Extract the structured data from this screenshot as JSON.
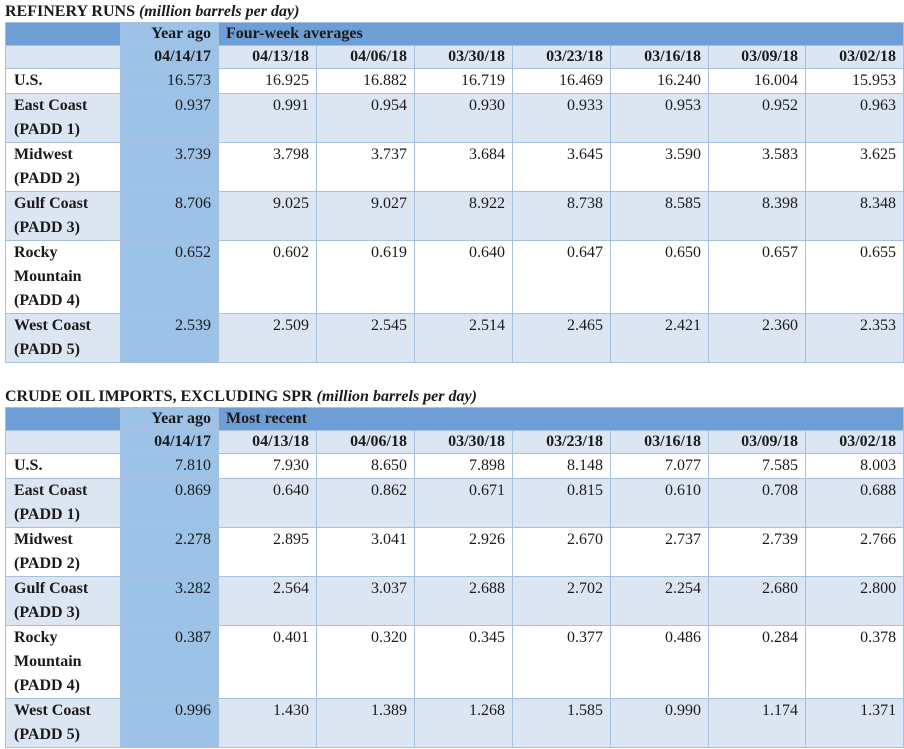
{
  "tables": [
    {
      "title": "REFINERY RUNS",
      "title_note": "(million barrels per day)",
      "group_headers": [
        "Year ago",
        "Four-week averages"
      ],
      "dates": [
        "04/14/17",
        "04/13/18",
        "04/06/18",
        "03/30/18",
        "03/23/18",
        "03/16/18",
        "03/09/18",
        "03/02/18"
      ],
      "rows": [
        {
          "region": [
            "U.S."
          ],
          "values": [
            "16.573",
            "16.925",
            "16.882",
            "16.719",
            "16.469",
            "16.240",
            "16.004",
            "15.953"
          ]
        },
        {
          "region": [
            "East Coast",
            "(PADD 1)"
          ],
          "values": [
            "0.937",
            "0.991",
            "0.954",
            "0.930",
            "0.933",
            "0.953",
            "0.952",
            "0.963"
          ]
        },
        {
          "region": [
            "Midwest",
            "(PADD 2)"
          ],
          "values": [
            "3.739",
            "3.798",
            "3.737",
            "3.684",
            "3.645",
            "3.590",
            "3.583",
            "3.625"
          ]
        },
        {
          "region": [
            "Gulf Coast",
            "(PADD 3)"
          ],
          "values": [
            "8.706",
            "9.025",
            "9.027",
            "8.922",
            "8.738",
            "8.585",
            "8.398",
            "8.348"
          ]
        },
        {
          "region": [
            "Rocky",
            "Mountain",
            "(PADD 4)"
          ],
          "values": [
            "0.652",
            "0.602",
            "0.619",
            "0.640",
            "0.647",
            "0.650",
            "0.657",
            "0.655"
          ]
        },
        {
          "region": [
            "West Coast",
            "(PADD 5)"
          ],
          "values": [
            "2.539",
            "2.509",
            "2.545",
            "2.514",
            "2.465",
            "2.421",
            "2.360",
            "2.353"
          ]
        }
      ]
    },
    {
      "title": "CRUDE OIL IMPORTS, EXCLUDING SPR",
      "title_note": "(million barrels per day)",
      "group_headers": [
        "Year ago",
        "Most recent"
      ],
      "dates": [
        "04/14/17",
        "04/13/18",
        "04/06/18",
        "03/30/18",
        "03/23/18",
        "03/16/18",
        "03/09/18",
        "03/02/18"
      ],
      "rows": [
        {
          "region": [
            "U.S."
          ],
          "values": [
            "7.810",
            "7.930",
            "8.650",
            "7.898",
            "8.148",
            "7.077",
            "7.585",
            "8.003"
          ]
        },
        {
          "region": [
            "East Coast",
            "(PADD 1)"
          ],
          "values": [
            "0.869",
            "0.640",
            "0.862",
            "0.671",
            "0.815",
            "0.610",
            "0.708",
            "0.688"
          ]
        },
        {
          "region": [
            "Midwest",
            "(PADD 2)"
          ],
          "values": [
            "2.278",
            "2.895",
            "3.041",
            "2.926",
            "2.670",
            "2.737",
            "2.739",
            "2.766"
          ]
        },
        {
          "region": [
            "Gulf Coast",
            "(PADD 3)"
          ],
          "values": [
            "3.282",
            "2.564",
            "3.037",
            "2.688",
            "2.702",
            "2.254",
            "2.680",
            "2.800"
          ]
        },
        {
          "region": [
            "Rocky",
            "Mountain",
            "(PADD 4)"
          ],
          "values": [
            "0.387",
            "0.401",
            "0.320",
            "0.345",
            "0.377",
            "0.486",
            "0.284",
            "0.378"
          ]
        },
        {
          "region": [
            "West Coast",
            "(PADD 5)"
          ],
          "values": [
            "0.996",
            "1.430",
            "1.389",
            "1.268",
            "1.585",
            "0.990",
            "1.174",
            "1.371"
          ]
        }
      ]
    }
  ]
}
